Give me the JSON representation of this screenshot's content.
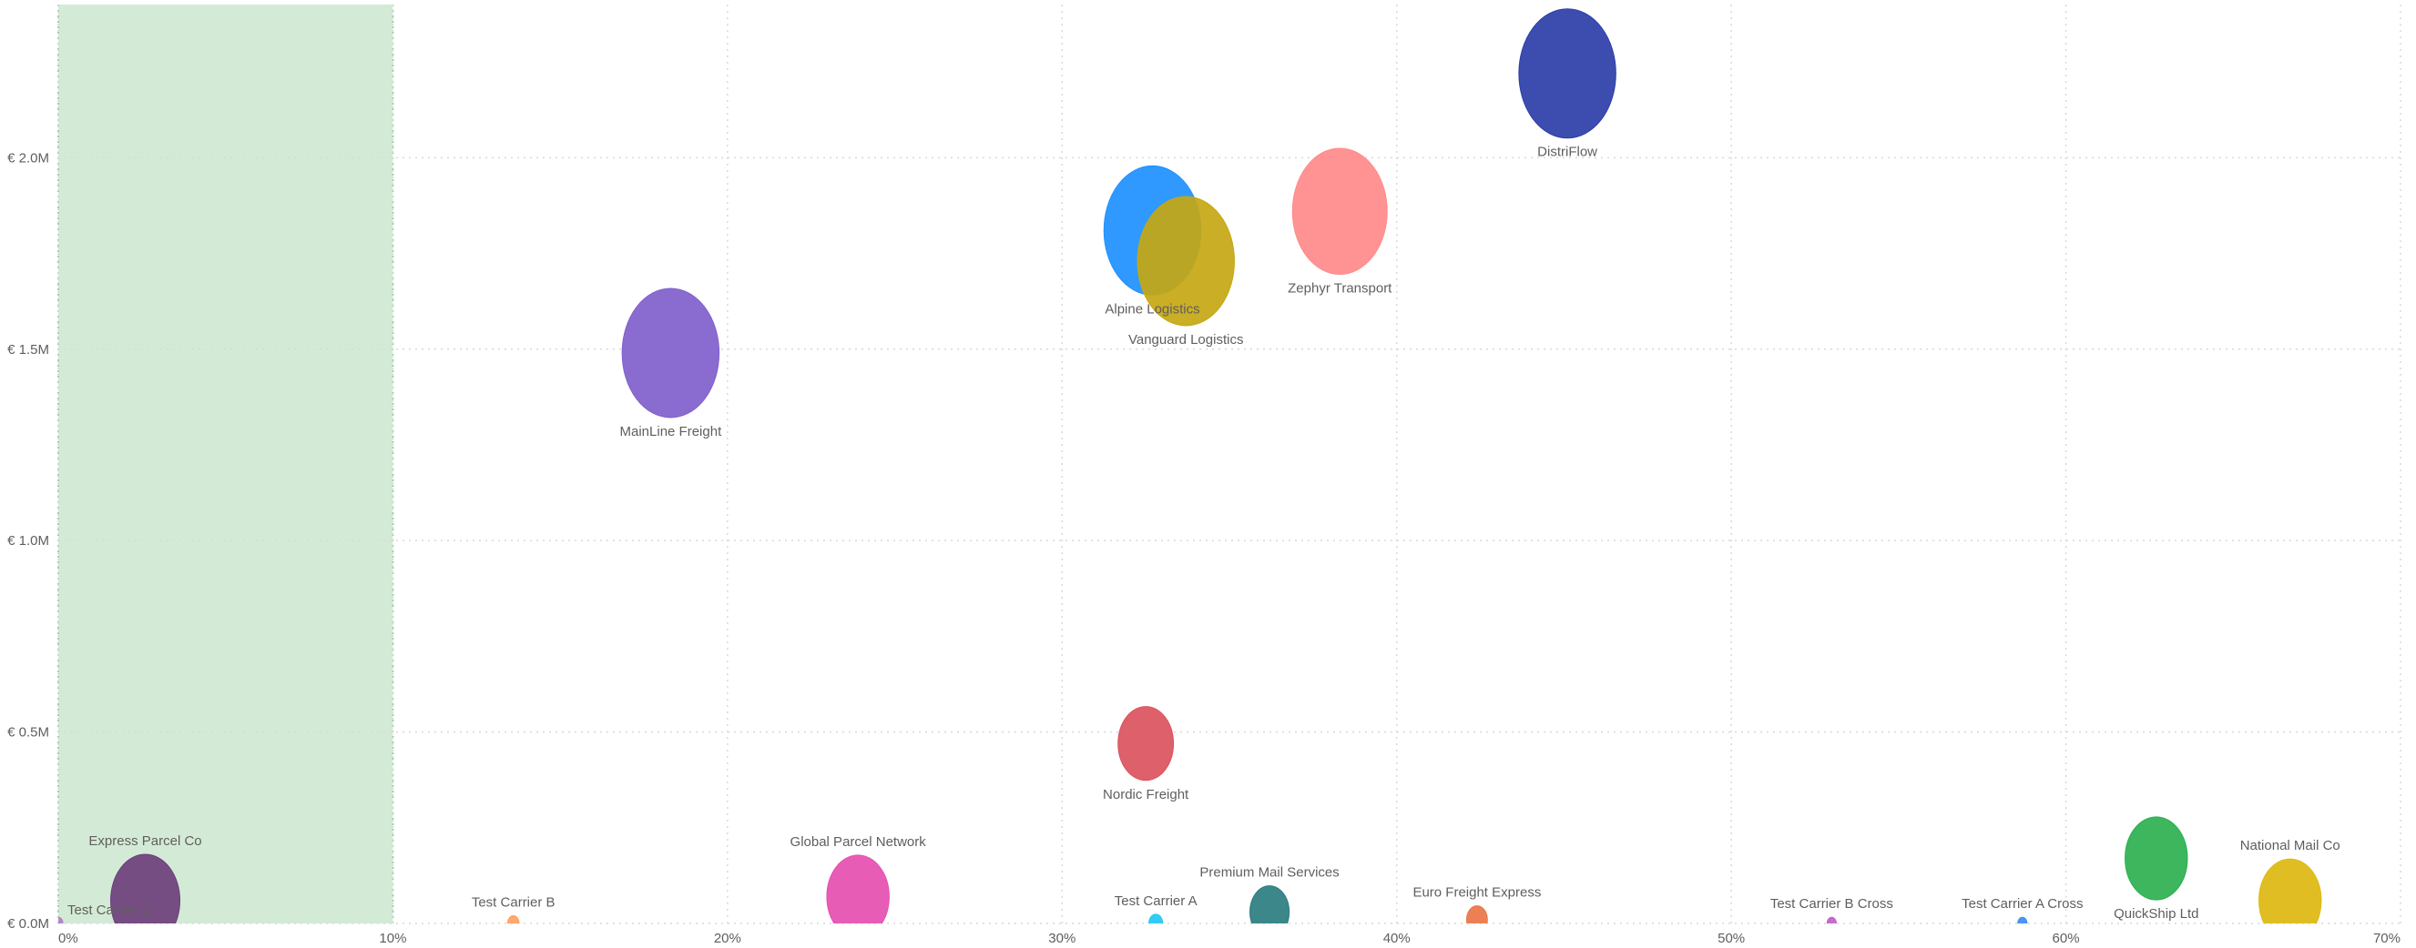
{
  "chart_data": {
    "type": "scatter",
    "subtype": "bubble",
    "title": "",
    "xlabel": "",
    "ylabel": "",
    "xlim": [
      0,
      70
    ],
    "ylim": [
      0,
      2.4
    ],
    "x_unit": "%",
    "y_unit": "€ M",
    "grid": true,
    "x_ticks": [
      "0%",
      "10%",
      "20%",
      "30%",
      "40%",
      "50%",
      "60%",
      "70%"
    ],
    "x_tick_values": [
      0,
      10,
      20,
      30,
      40,
      50,
      60,
      70
    ],
    "y_ticks": [
      "€ 0.0M",
      "€ 0.5M",
      "€ 1.0M",
      "€ 1.5M",
      "€ 2.0M"
    ],
    "y_tick_values": [
      0,
      0.5,
      1.0,
      1.5,
      2.0
    ],
    "highlight_band": {
      "x_from": 0,
      "x_to": 10,
      "color": "#D3EBD6",
      "border_color": "#9FD3A8"
    },
    "points": [
      {
        "name": "DistriFlow",
        "x": 45.1,
        "y": 2.22,
        "size": 42,
        "color": "#2C3EA8",
        "label": "below"
      },
      {
        "name": "Zephyr Transport",
        "x": 38.3,
        "y": 1.86,
        "size": 41,
        "color": "#FF8A8A",
        "label": "below"
      },
      {
        "name": "Alpine Logistics",
        "x": 32.7,
        "y": 1.81,
        "size": 42,
        "color": "#1E90FF",
        "label": "below"
      },
      {
        "name": "Vanguard Logistics",
        "x": 33.7,
        "y": 1.73,
        "size": 42,
        "color": "#C5A712",
        "label": "below"
      },
      {
        "name": "MainLine Freight",
        "x": 18.3,
        "y": 1.49,
        "size": 42,
        "color": "#8060CC",
        "label": "below"
      },
      {
        "name": "Nordic Freight",
        "x": 32.5,
        "y": 0.47,
        "size": 24,
        "color": "#DA525E",
        "label": "below"
      },
      {
        "name": "Express Parcel Co",
        "x": 2.6,
        "y": 0.06,
        "size": 30,
        "color": "#6C3F7C",
        "label": "above"
      },
      {
        "name": "Test Carrier C",
        "x": 0.0,
        "y": 0.0,
        "size": 4,
        "color": "#B07FC8",
        "label": "above-right"
      },
      {
        "name": "Test Carrier B",
        "x": 13.6,
        "y": 0.0,
        "size": 5,
        "color": "#FFA060",
        "label": "above"
      },
      {
        "name": "Global Parcel Network",
        "x": 23.9,
        "y": 0.07,
        "size": 27,
        "color": "#E54FB0",
        "label": "above"
      },
      {
        "name": "Test Carrier A",
        "x": 32.8,
        "y": 0.0,
        "size": 6,
        "color": "#24C6F2",
        "label": "above"
      },
      {
        "name": "Premium Mail Services",
        "x": 36.2,
        "y": 0.03,
        "size": 17,
        "color": "#2A7D80",
        "label": "above"
      },
      {
        "name": "Euro Freight Express",
        "x": 42.4,
        "y": 0.01,
        "size": 9,
        "color": "#EA7545",
        "label": "above"
      },
      {
        "name": "Test Carrier B Cross",
        "x": 53.0,
        "y": 0.0,
        "size": 4,
        "color": "#C060C8",
        "label": "above"
      },
      {
        "name": "Test Carrier A Cross",
        "x": 58.7,
        "y": 0.0,
        "size": 4,
        "color": "#3D8CF5",
        "label": "above"
      },
      {
        "name": "QuickShip Ltd",
        "x": 62.7,
        "y": 0.17,
        "size": 27,
        "color": "#2DB04F",
        "label": "below"
      },
      {
        "name": "National Mail Co",
        "x": 66.7,
        "y": 0.06,
        "size": 27,
        "color": "#DDB910",
        "label": "above"
      }
    ]
  }
}
